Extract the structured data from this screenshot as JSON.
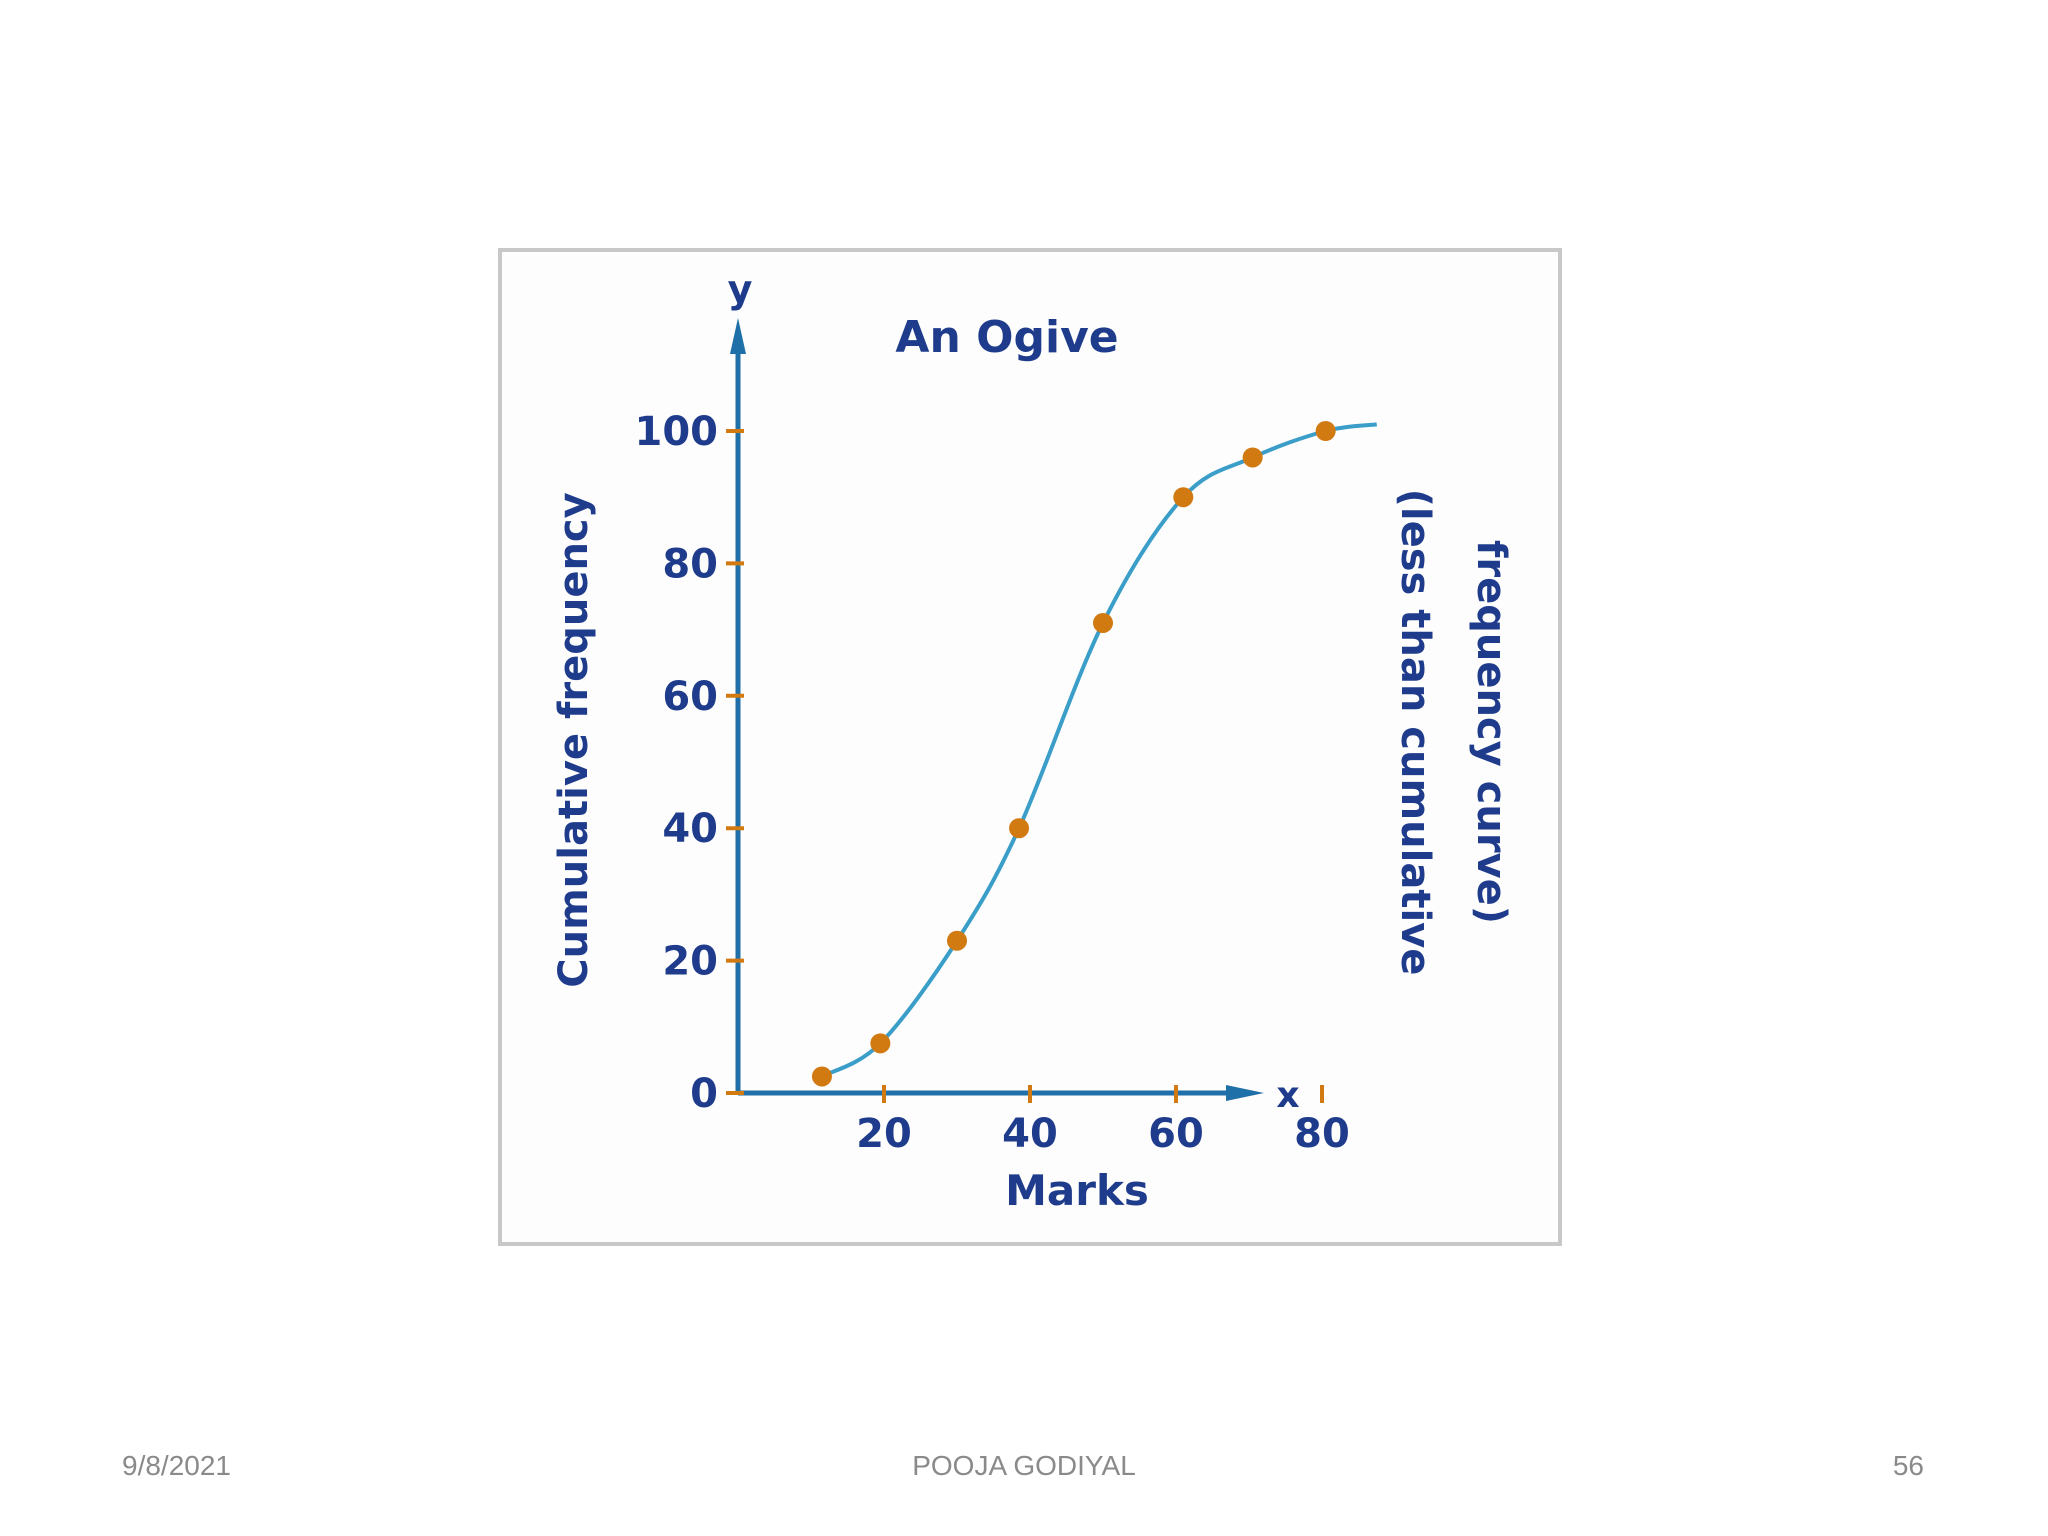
{
  "chart_data": {
    "type": "line",
    "title": "An Ogive",
    "xlabel": "Marks",
    "ylabel": "Cumulative frequency",
    "x_axis_letter": "x",
    "y_axis_letter": "y",
    "annotation_lines": [
      "(less than cumulative",
      "frequency curve)"
    ],
    "xticks": [
      20,
      40,
      60,
      80
    ],
    "yticks": [
      0,
      20,
      40,
      60,
      80,
      100
    ],
    "xlim": [
      0,
      100
    ],
    "ylim": [
      0,
      113
    ],
    "grid": false,
    "legend": "none",
    "series": [
      {
        "x": [
          11.5,
          19.5,
          30,
          38.5,
          50,
          61,
          70.5,
          80.5
        ],
        "y": [
          2.5,
          7.5,
          23,
          40,
          71,
          90,
          96,
          100
        ]
      }
    ],
    "curve_end": {
      "x": 87.5,
      "y": 101
    },
    "colors": {
      "axis": "#1f6fa8",
      "curve": "#3a9ec9",
      "points": "#d17a12",
      "ticks": "#d17a12",
      "text": "#1f3c8c"
    }
  },
  "footer": {
    "date": "9/8/2021",
    "author": "POOJA GODIYAL",
    "page": "56"
  }
}
